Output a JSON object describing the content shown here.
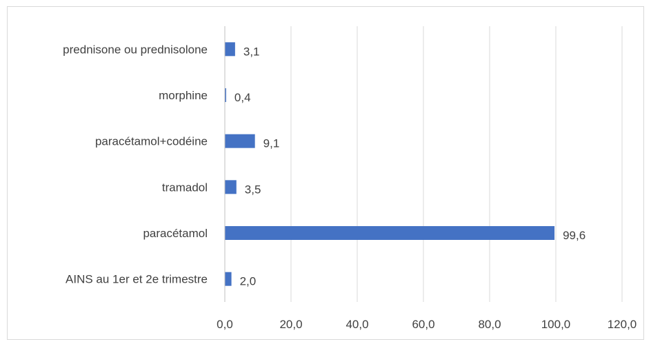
{
  "chart_data": {
    "type": "bar",
    "orientation": "horizontal",
    "categories": [
      "AINS au 1er et 2e trimestre",
      "paracétamol",
      "tramadol",
      "paracétamol+codéine",
      "morphine",
      "prednisone ou prednisolone"
    ],
    "values": [
      2.0,
      99.6,
      3.5,
      9.1,
      0.4,
      3.1
    ],
    "data_labels": [
      "2,0",
      "99,6",
      "3,5",
      "9,1",
      "0,4",
      "3,1"
    ],
    "xlim": [
      0,
      120
    ],
    "x_ticks": [
      0,
      20,
      40,
      60,
      80,
      100,
      120
    ],
    "x_tick_labels": [
      "0,0",
      "20,0",
      "40,0",
      "60,0",
      "80,0",
      "100,0",
      "120,0"
    ],
    "grid": "vertical",
    "bar_color": "#4472c4",
    "title": "",
    "xlabel": "",
    "ylabel": ""
  }
}
